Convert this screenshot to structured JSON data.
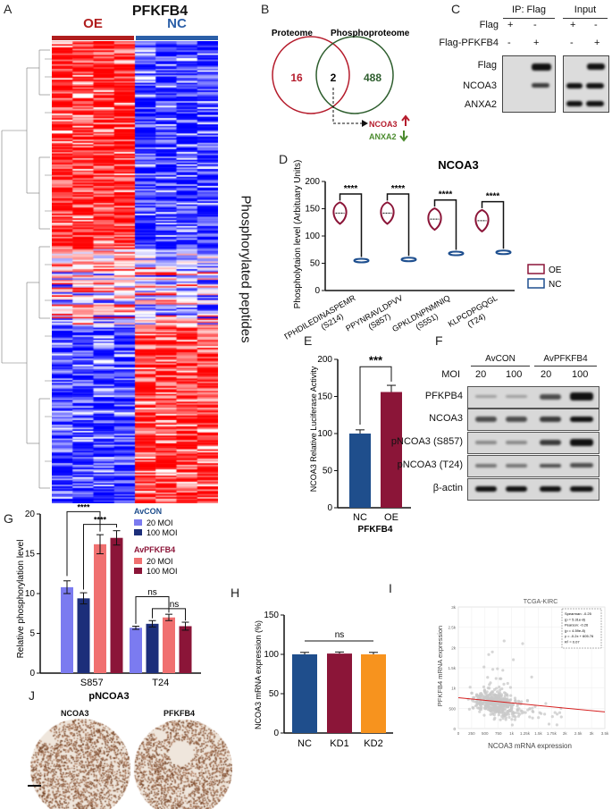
{
  "panels": {
    "A": {
      "letter": "A",
      "title": "PFKFB4",
      "group_oe": "OE",
      "group_nc": "NC",
      "side_label": "Phosphorylated peptides"
    },
    "B": {
      "letter": "B",
      "venn_left_label": "Proteome",
      "venn_right_label": "Phosphoproteome",
      "left_only": "16",
      "overlap": "2",
      "right_only": "488",
      "gene_up": "NCOA3",
      "gene_down": "ANXA2"
    },
    "C": {
      "letter": "C",
      "header_ip": "IP: Flag",
      "header_input": "Input",
      "row1_label": "Flag",
      "row2_label": "Flag-PFKFB4",
      "row1_signs": [
        "+",
        "-",
        "+",
        "-"
      ],
      "row2_signs": [
        "-",
        "+",
        "-",
        "+"
      ],
      "blot_labels": [
        "Flag",
        "NCOA3",
        "ANXA2"
      ]
    },
    "D": {
      "letter": "D",
      "sig": "****",
      "legend_oe": "OE",
      "legend_nc": "NC"
    },
    "E": {
      "letter": "E",
      "sig": "***",
      "xtitle": "PFKFB4"
    },
    "F": {
      "letter": "F",
      "group1": "AvCON",
      "group2": "AvPFKFB4",
      "moi_label": "MOI",
      "moi_values": [
        "20",
        "100",
        "20",
        "100"
      ],
      "blot_labels": [
        "PFKPB4",
        "NCOA3",
        "pNCOA3 (S857)",
        "pNCOA3 (T24)",
        "β-actin"
      ]
    },
    "G": {
      "letter": "G",
      "xtitle": "pNCOA3",
      "legend_group1": "AvCON",
      "legend_group2": "AvPFKFB4",
      "legend_items": [
        "20 MOI",
        "100 MOI",
        "20 MOI",
        "100 MOI"
      ],
      "sig": "****",
      "ns": "ns"
    },
    "H": {
      "letter": "H",
      "ns": "ns"
    },
    "I": {
      "letter": "I",
      "title": "TCGA-KIRC",
      "stats": [
        "Spearman: -0.25",
        "(p = 5.31e-8)",
        "Pearson: -0.26",
        "(p = 4.59e-8)",
        "y = -0.2x + 605.76",
        "R² = 0.07"
      ]
    },
    "J": {
      "letter": "J",
      "label_left": "NCOA3",
      "label_right": "PFKFB4"
    }
  },
  "chart_data": [
    {
      "id": "D",
      "type": "violin",
      "title": "NCOA3",
      "ylabel": "Phospholytaion level (Arbituary Units)",
      "ylim": [
        0,
        200
      ],
      "yticks": [
        0,
        50,
        100,
        150,
        200
      ],
      "categories": [
        "TPHDILEDINASPEMR (S214)",
        "PPYNRAVLDPVV (S857)",
        "GPKLDNPNMNIQ (S551)",
        "KLPCDPGQGL (T24)"
      ],
      "series": [
        {
          "name": "OE",
          "color": "#8b1538",
          "values": [
            142,
            142,
            131,
            128
          ]
        },
        {
          "name": "NC",
          "color": "#1e4f8f",
          "values": [
            55,
            57,
            68,
            70
          ]
        }
      ],
      "significance": [
        "****",
        "****",
        "****",
        "****"
      ]
    },
    {
      "id": "E",
      "type": "bar",
      "ylabel": "NCOA3 Relative Luciferase Activity",
      "xlabel": "PFKFB4",
      "ylim": [
        0,
        200
      ],
      "yticks": [
        0,
        50,
        100,
        150,
        200
      ],
      "categories": [
        "NC",
        "OE"
      ],
      "values": [
        100,
        156
      ],
      "errors": [
        5,
        9
      ],
      "colors": [
        "#1f4e8c",
        "#8b1538"
      ],
      "significance": "***"
    },
    {
      "id": "G",
      "type": "bar",
      "ylabel": "Relative phosphorylation level",
      "xlabel": "pNCOA3",
      "ylim": [
        0,
        20
      ],
      "yticks": [
        0,
        5,
        10,
        15,
        20
      ],
      "categories": [
        "S857",
        "T24"
      ],
      "series": [
        {
          "name": "AvCON 20 MOI",
          "color": "#7b7bf0",
          "values": [
            10.8,
            5.7
          ],
          "errors": [
            0.8,
            0.2
          ]
        },
        {
          "name": "AvCON 100 MOI",
          "color": "#1c2e7a",
          "values": [
            9.4,
            6.2
          ],
          "errors": [
            0.7,
            0.4
          ]
        },
        {
          "name": "AvPFKFB4 20 MOI",
          "color": "#f07070",
          "values": [
            16.2,
            7.0
          ],
          "errors": [
            1.2,
            0.4
          ]
        },
        {
          "name": "AvPFKFB4 100 MOI",
          "color": "#8b1538",
          "values": [
            17.0,
            5.9
          ],
          "errors": [
            0.9,
            0.5
          ]
        }
      ]
    },
    {
      "id": "H",
      "type": "bar",
      "ylabel": "NCOA3 mRNA expression (%)",
      "ylim": [
        0,
        150
      ],
      "yticks": [
        0,
        50,
        100,
        150
      ],
      "categories": [
        "NC",
        "KD1",
        "KD2"
      ],
      "values": [
        100,
        101,
        100
      ],
      "errors": [
        2.5,
        2,
        2.5
      ],
      "colors": [
        "#1f4e8c",
        "#8b1538",
        "#f7931e"
      ]
    },
    {
      "id": "I",
      "type": "scatter",
      "title": "TCGA-KIRC",
      "xlabel": "NCOA3 mRNA expression",
      "ylabel": "PFKFB4 mRNA expression",
      "xlim": [
        0,
        3500
      ],
      "ylim": [
        0,
        3000
      ],
      "xticks": [
        "0",
        "250",
        "500",
        "750",
        "1k",
        "1.25k",
        "1.5k",
        "1.75k",
        "2k",
        "2.5k",
        "3k",
        "3.5k"
      ],
      "yticks": [
        "0",
        "500",
        "1k",
        "1.5k",
        "2k",
        "2.5k",
        "3k"
      ]
    }
  ]
}
